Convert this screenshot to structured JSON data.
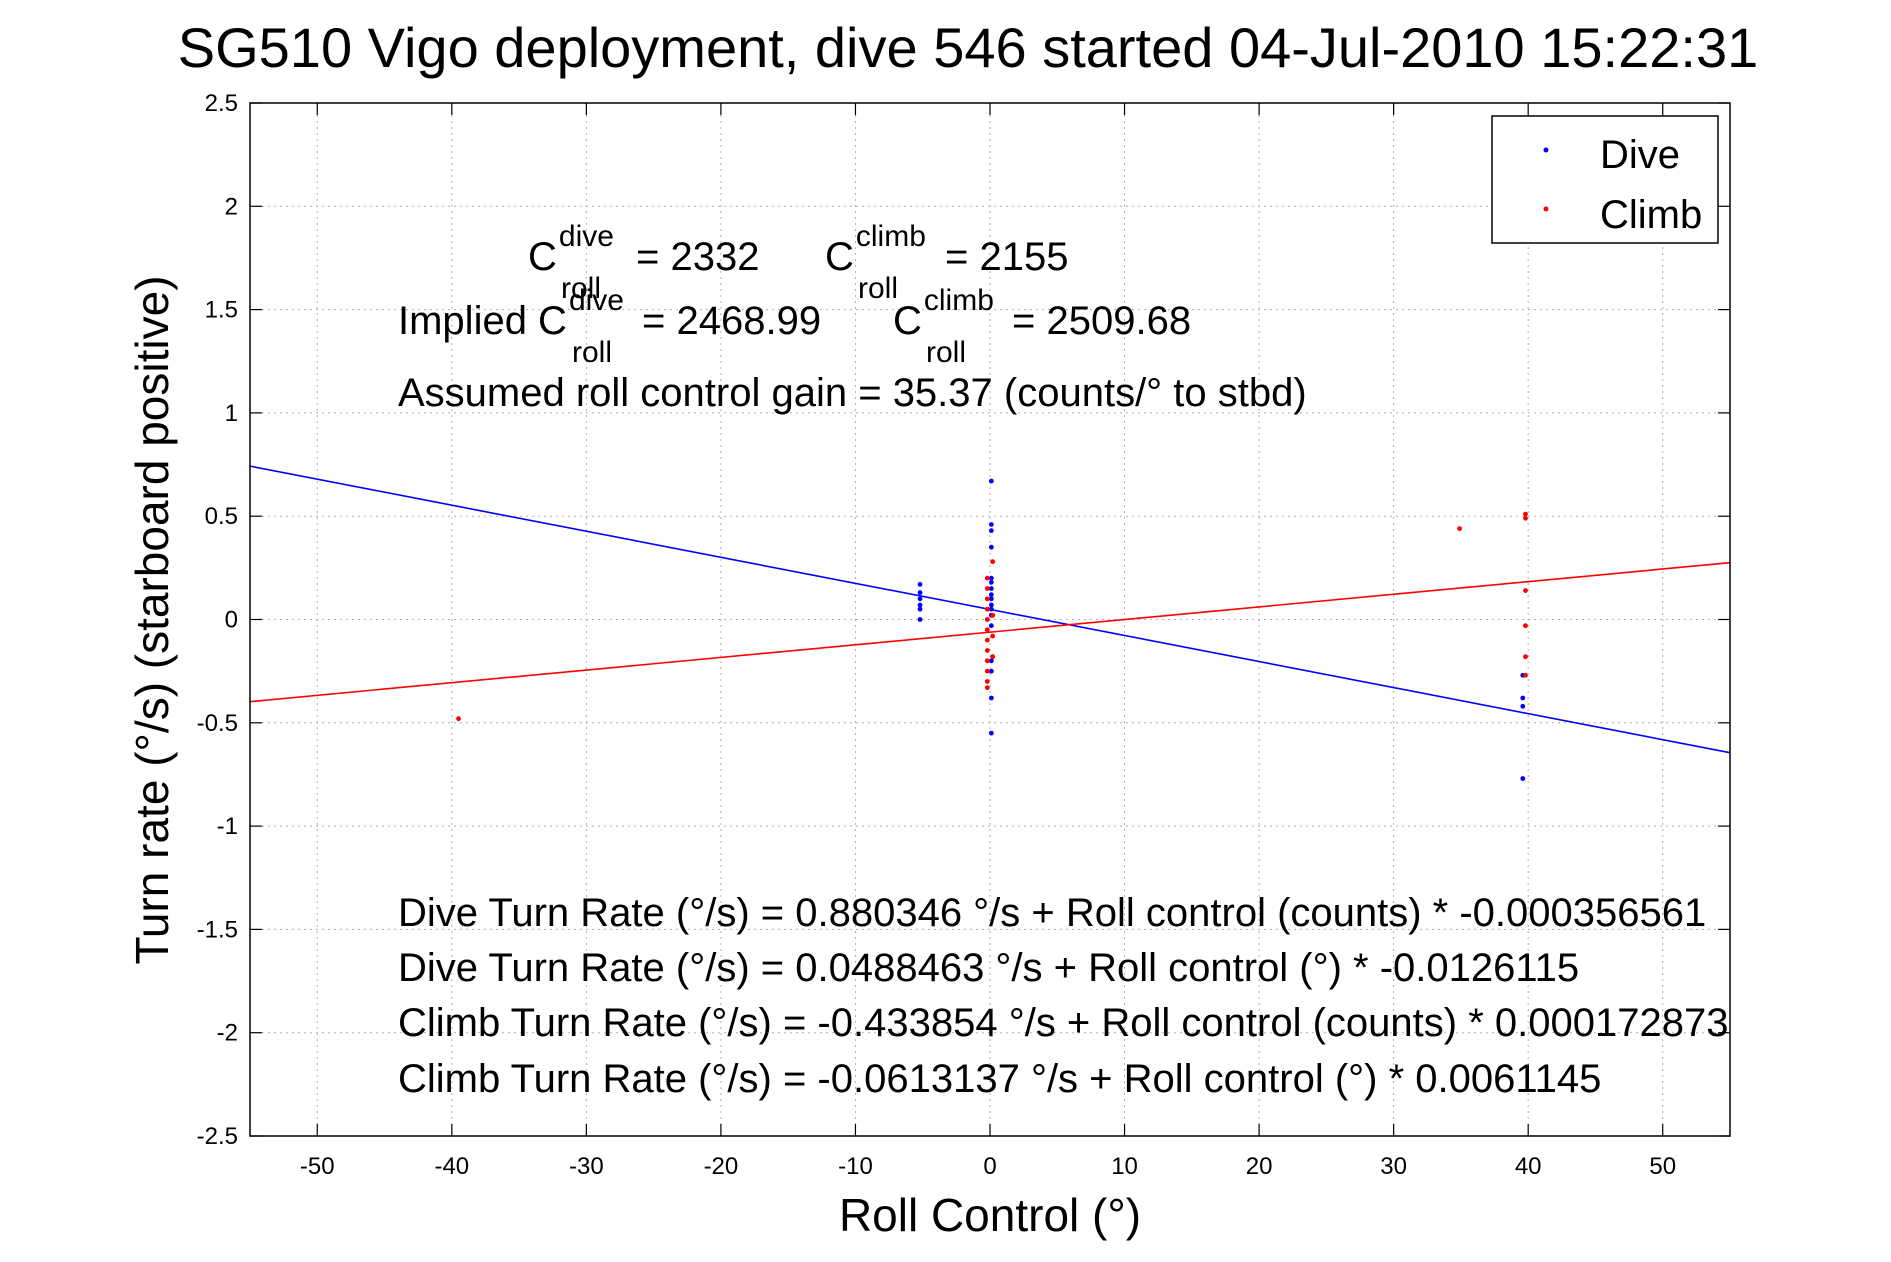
{
  "chart_data": {
    "type": "scatter",
    "title": "SG510 Vigo deployment, dive 546 started 04-Jul-2010 15:22:31",
    "xlabel": "Roll Control (°)",
    "ylabel": "Turn rate (°/s)  (starboard positive)",
    "xlim": [
      -55,
      55
    ],
    "ylim": [
      -2.5,
      2.5
    ],
    "xticks": [
      -50,
      -40,
      -30,
      -20,
      -10,
      0,
      10,
      20,
      30,
      40,
      50
    ],
    "yticks": [
      -2.5,
      -2,
      -1.5,
      -1,
      -0.5,
      0,
      0.5,
      1,
      1.5,
      2,
      2.5
    ],
    "grid": true,
    "legend": {
      "position": "top-right",
      "entries": [
        "Dive",
        "Climb"
      ]
    },
    "colors": {
      "dive": "#0000ff",
      "climb": "#ff0000"
    },
    "series": [
      {
        "name": "Dive",
        "color": "#0000ff",
        "points": [
          [
            -5.2,
            0.17
          ],
          [
            -5.2,
            0.13
          ],
          [
            -5.2,
            0.1
          ],
          [
            -5.2,
            0.07
          ],
          [
            -5.2,
            0.05
          ],
          [
            -5.2,
            0.0
          ],
          [
            0.1,
            0.67
          ],
          [
            0.1,
            0.46
          ],
          [
            0.1,
            0.43
          ],
          [
            0.1,
            0.35
          ],
          [
            0.1,
            0.2
          ],
          [
            0.1,
            0.18
          ],
          [
            0.1,
            0.15
          ],
          [
            0.1,
            0.12
          ],
          [
            0.1,
            0.1
          ],
          [
            0.1,
            0.07
          ],
          [
            0.1,
            0.05
          ],
          [
            0.1,
            0.02
          ],
          [
            0.1,
            -0.03
          ],
          [
            0.1,
            -0.2
          ],
          [
            0.1,
            -0.25
          ],
          [
            0.1,
            -0.38
          ],
          [
            0.1,
            -0.55
          ],
          [
            39.6,
            -0.27
          ],
          [
            39.6,
            -0.38
          ],
          [
            39.6,
            -0.42
          ],
          [
            39.6,
            -0.77
          ]
        ]
      },
      {
        "name": "Climb",
        "color": "#ff0000",
        "points": [
          [
            -39.5,
            -0.48
          ],
          [
            -0.2,
            0.2
          ],
          [
            -0.2,
            0.15
          ],
          [
            -0.2,
            0.1
          ],
          [
            -0.2,
            0.05
          ],
          [
            -0.2,
            0.0
          ],
          [
            -0.2,
            -0.05
          ],
          [
            -0.2,
            -0.1
          ],
          [
            -0.2,
            -0.15
          ],
          [
            -0.2,
            -0.2
          ],
          [
            -0.2,
            -0.25
          ],
          [
            -0.2,
            -0.3
          ],
          [
            -0.2,
            -0.33
          ],
          [
            0.2,
            0.28
          ],
          [
            0.2,
            0.02
          ],
          [
            0.2,
            -0.08
          ],
          [
            0.2,
            -0.18
          ],
          [
            34.9,
            0.44
          ],
          [
            39.8,
            0.51
          ],
          [
            39.8,
            0.49
          ],
          [
            39.8,
            0.14
          ],
          [
            39.8,
            -0.03
          ],
          [
            39.8,
            -0.18
          ],
          [
            39.8,
            -0.27
          ]
        ]
      }
    ],
    "fit_lines": [
      {
        "series": "Dive",
        "intercept": 0.0488463,
        "slope": -0.0126115,
        "color": "#0000ff"
      },
      {
        "series": "Climb",
        "intercept": -0.0613137,
        "slope": 0.0061145,
        "color": "#ff0000"
      }
    ],
    "annotations": {
      "c_roll_dive": {
        "prefix": "C",
        "sup": "dive",
        "sub": "roll",
        "value": "= 2332"
      },
      "c_roll_climb": {
        "prefix": "C",
        "sup": "climb",
        "sub": "roll",
        "value": "= 2155"
      },
      "implied_dive": {
        "prefix": "Implied C",
        "sup": "dive",
        "sub": "roll",
        "value": "= 2468.99"
      },
      "implied_climb": {
        "prefix": "C",
        "sup": "climb",
        "sub": "roll",
        "value": "= 2509.68"
      },
      "gain": "Assumed roll control gain = 35.37 (counts/° to stbd)",
      "equations": [
        "Dive Turn Rate (°/s) = 0.880346 °/s + Roll control (counts) * -0.000356561",
        "Dive Turn Rate (°/s) = 0.0488463 °/s + Roll control (°) * -0.0126115",
        "Climb Turn Rate (°/s) = -0.433854 °/s + Roll control (counts) * 0.000172873",
        "Climb Turn Rate (°/s) = -0.0613137 °/s + Roll control (°) * 0.0061145"
      ]
    }
  }
}
